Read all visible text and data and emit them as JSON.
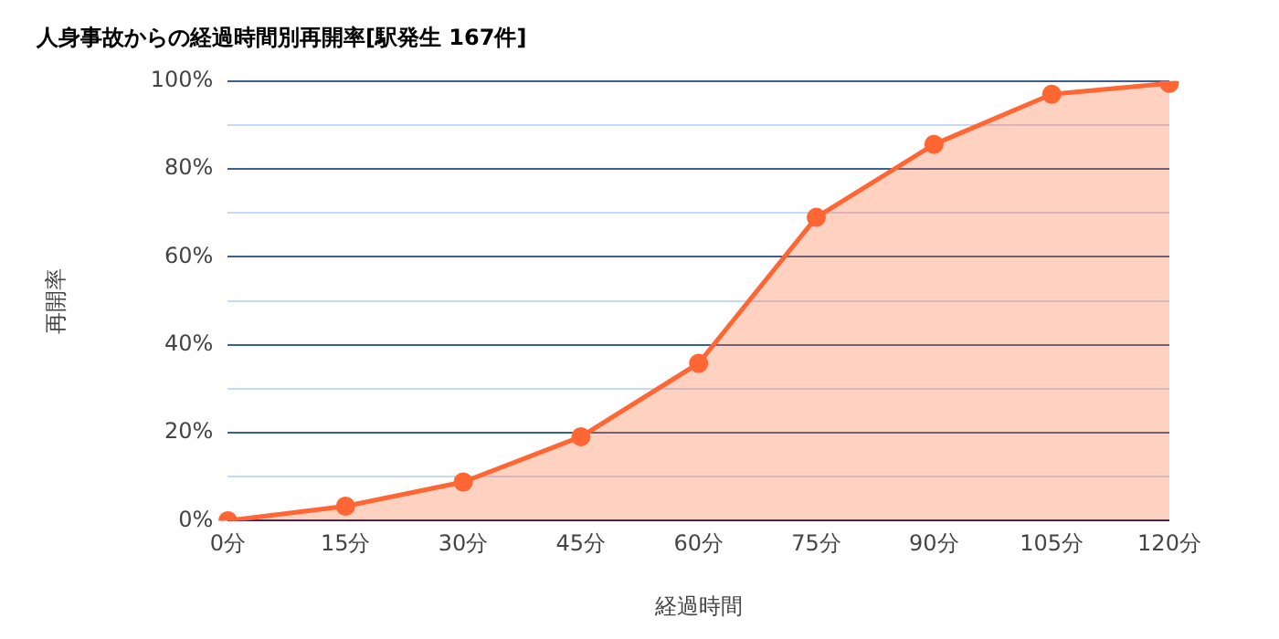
{
  "chart_data": {
    "type": "area",
    "title": "人身事故からの経過時間別再開率[駅発生 167件]",
    "xlabel": "経過時間",
    "ylabel": "再開率",
    "categories": [
      "0分",
      "15分",
      "30分",
      "45分",
      "60分",
      "75分",
      "90分",
      "105分",
      "120分"
    ],
    "series": [
      {
        "color": "#ff6633",
        "values": [
          0,
          3.3,
          8.8,
          19.1,
          35.8,
          69,
          85.6,
          97,
          99.5
        ]
      }
    ],
    "ylim": [
      0,
      100
    ],
    "yticks": [
      {
        "value": 0,
        "label": "0%"
      },
      {
        "value": 10,
        "label": null
      },
      {
        "value": 20,
        "label": "20%"
      },
      {
        "value": 30,
        "label": null
      },
      {
        "value": 40,
        "label": "40%"
      },
      {
        "value": 50,
        "label": null
      },
      {
        "value": 60,
        "label": "60%"
      },
      {
        "value": 70,
        "label": null
      },
      {
        "value": 80,
        "label": "80%"
      },
      {
        "value": 90,
        "label": null
      },
      {
        "value": 100,
        "label": "100%"
      }
    ],
    "grid": "y",
    "marker": "circle",
    "legend": false
  }
}
